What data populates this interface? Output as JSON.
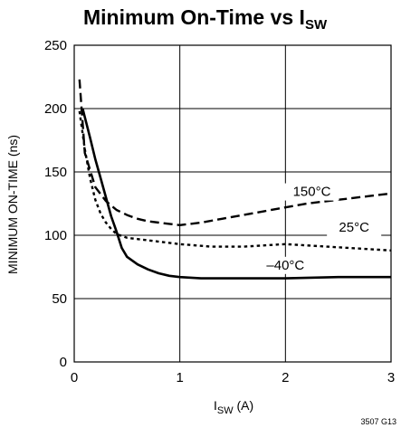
{
  "chart_data": {
    "type": "line",
    "title": {
      "main": "Minimum On-Time vs I",
      "sub": "SW"
    },
    "xlabel": {
      "main": "I",
      "sub": "SW",
      "unit": " (A)"
    },
    "ylabel": "MINIMUM ON-TIME (ns)",
    "xlim": [
      0,
      3
    ],
    "ylim": [
      0,
      250
    ],
    "xticks": [
      0,
      1,
      2,
      3
    ],
    "yticks": [
      0,
      50,
      100,
      150,
      200,
      250
    ],
    "grid": true,
    "figure_code": "3507 G13",
    "series": [
      {
        "name": "150°C",
        "style": "long-dash",
        "x": [
          0.05,
          0.1,
          0.2,
          0.3,
          0.4,
          0.5,
          0.6,
          0.7,
          0.8,
          0.9,
          1.0,
          1.1,
          1.2,
          1.4,
          1.6,
          1.8,
          2.0,
          2.2,
          2.4,
          2.6,
          2.8,
          3.0
        ],
        "y": [
          223,
          165,
          138,
          127,
          120,
          116,
          113,
          111,
          110,
          109,
          108,
          109,
          110,
          113,
          116,
          119,
          122,
          125,
          127,
          129,
          131,
          133
        ]
      },
      {
        "name": "25°C",
        "style": "short-dash",
        "x": [
          0.05,
          0.1,
          0.15,
          0.2,
          0.25,
          0.3,
          0.35,
          0.4,
          0.5,
          0.7,
          1.0,
          1.3,
          1.6,
          1.8,
          2.0,
          2.2,
          2.4,
          2.6,
          2.8,
          3.0
        ],
        "y": [
          198,
          168,
          145,
          128,
          117,
          110,
          105,
          101,
          98,
          96,
          93,
          91,
          91,
          92,
          93,
          92,
          91,
          90,
          89,
          88
        ]
      },
      {
        "name": "–40°C",
        "style": "solid",
        "x": [
          0.08,
          0.15,
          0.2,
          0.25,
          0.3,
          0.35,
          0.4,
          0.45,
          0.5,
          0.6,
          0.7,
          0.8,
          0.9,
          1.0,
          1.2,
          1.5,
          2.0,
          2.5,
          3.0
        ],
        "y": [
          200,
          177,
          160,
          145,
          130,
          115,
          103,
          90,
          83,
          77,
          73,
          70,
          68,
          67,
          66,
          66,
          66,
          67,
          67
        ]
      }
    ]
  }
}
